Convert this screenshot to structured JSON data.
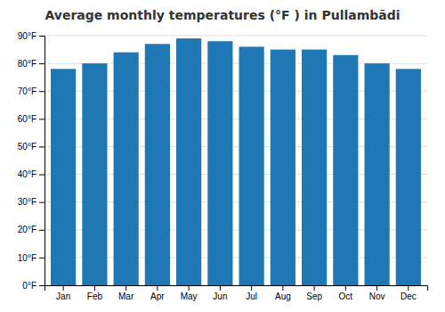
{
  "chart_data": {
    "type": "bar",
    "title": "Average monthly temperatures (°F ) in Pullambādi",
    "categories": [
      "Jan",
      "Feb",
      "Mar",
      "Apr",
      "May",
      "Jun",
      "Jul",
      "Aug",
      "Sep",
      "Oct",
      "Nov",
      "Dec"
    ],
    "values": [
      78,
      80,
      84,
      87,
      89,
      88,
      86,
      85,
      85,
      83,
      80,
      78
    ],
    "ylim": [
      0,
      90
    ],
    "yticks": [
      {
        "value": 0,
        "label": "0°F"
      },
      {
        "value": 10,
        "label": "10°F"
      },
      {
        "value": 20,
        "label": "20°F"
      },
      {
        "value": 30,
        "label": "30°F"
      },
      {
        "value": 40,
        "label": "40°F"
      },
      {
        "value": 50,
        "label": "50°F"
      },
      {
        "value": 60,
        "label": "60°F"
      },
      {
        "value": 70,
        "label": "70°F"
      },
      {
        "value": 80,
        "label": "80°F"
      },
      {
        "value": 90,
        "label": "90°F"
      }
    ],
    "grid": true
  }
}
